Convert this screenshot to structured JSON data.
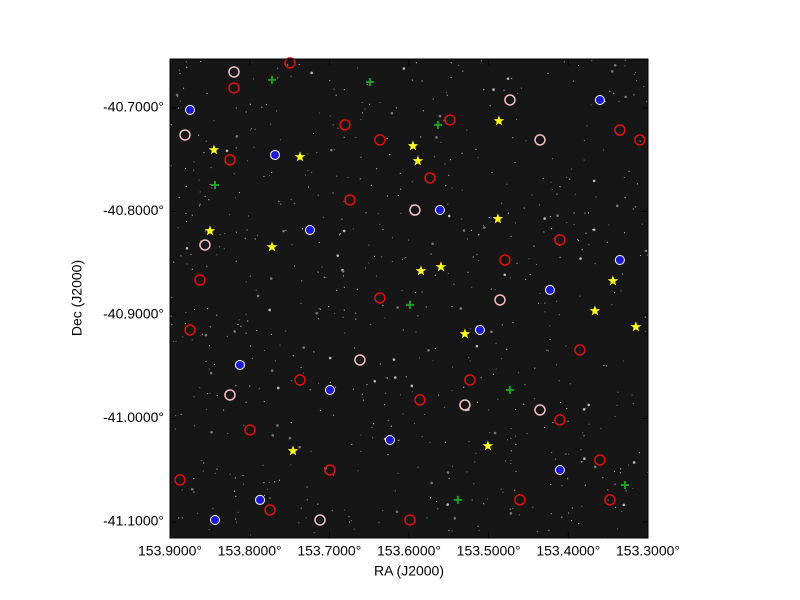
{
  "chart_data": {
    "type": "sky-overlay",
    "x_label": "RA (J2000)",
    "y_label": "Dec (J2000)",
    "xlim": [
      153.9,
      153.3
    ],
    "ylim": [
      -41.1155,
      -40.6527
    ],
    "xticks": [
      {
        "value": 153.9,
        "label": "153.9000°"
      },
      {
        "value": 153.8,
        "label": "153.8000°"
      },
      {
        "value": 153.7,
        "label": "153.7000°"
      },
      {
        "value": 153.6,
        "label": "153.6000°"
      },
      {
        "value": 153.5,
        "label": "153.5000°"
      },
      {
        "value": 153.4,
        "label": "153.4000°"
      },
      {
        "value": 153.3,
        "label": "153.3000°"
      }
    ],
    "yticks": [
      {
        "value": -40.7,
        "label": "-40.7000°"
      },
      {
        "value": -40.8,
        "label": "-40.8000°"
      },
      {
        "value": -40.9,
        "label": "-40.9000°"
      },
      {
        "value": -41.0,
        "label": "-41.0000°"
      },
      {
        "value": -41.1,
        "label": "-41.1000°"
      }
    ],
    "series": [
      {
        "color": "#e01010",
        "marker": "circle",
        "x": [
          153.8197,
          153.7494,
          153.6804,
          153.5737,
          153.6365,
          153.4106,
          153.3353,
          153.8749,
          153.7996,
          153.6992,
          153.5988,
          153.4608,
          153.3604,
          153.3102,
          153.5235,
          153.7368,
          153.8624,
          153.4106,
          153.7745,
          153.5863,
          153.6741,
          153.4796,
          153.3855,
          153.8247,
          153.5486,
          153.3478,
          153.6365,
          153.8875
        ],
        "y": [
          -40.6807,
          -40.6565,
          -40.7164,
          -40.7676,
          -40.8836,
          -40.8275,
          -40.7213,
          -40.9145,
          -41.0111,
          -41.0498,
          -41.0981,
          -41.0787,
          -41.0401,
          -40.7309,
          -40.9628,
          -40.9628,
          -40.8662,
          -41.0014,
          -41.0884,
          -40.9821,
          -40.7889,
          -40.8469,
          -40.9338,
          -40.7502,
          -40.7116,
          -41.0787,
          -40.7309,
          -41.0594
        ]
      },
      {
        "color": "#1a1ad0",
        "marker": "dot",
        "x": [
          153.8749,
          153.7682,
          153.7243,
          153.5612,
          153.3604,
          153.4231,
          153.8435,
          153.6239,
          153.511,
          153.3353,
          153.6992,
          153.787,
          153.4106,
          153.8122
        ],
        "y": [
          -40.7019,
          -40.7454,
          -40.8179,
          -40.7986,
          -40.6923,
          -40.8758,
          -41.0981,
          -41.0208,
          -40.9145,
          -40.8469,
          -40.9725,
          -41.0787,
          -41.0498,
          -40.9483
        ]
      },
      {
        "color": "#f4c0c8",
        "marker": "circle",
        "x": [
          153.8197,
          153.8812,
          153.8561,
          153.4858,
          153.5925,
          153.6616,
          153.5298,
          153.4356,
          153.7117,
          153.4356,
          153.8247,
          153.4733
        ],
        "y": [
          -40.6652,
          -40.7261,
          -40.8324,
          -40.8855,
          -40.7986,
          -40.9435,
          -40.987,
          -40.9918,
          -41.0981,
          -40.7309,
          -40.9773,
          -40.6923
        ]
      },
      {
        "color": "#20a020",
        "marker": "plus",
        "x": [
          153.772,
          153.649,
          153.5988,
          153.4733,
          153.329,
          153.5637,
          153.5386,
          153.8435
        ],
        "y": [
          -40.6729,
          -40.6749,
          -40.8903,
          -40.9725,
          -41.0643,
          -40.7164,
          -41.0787,
          -40.7744
        ]
      },
      {
        "color": "#ffff20",
        "marker": "star",
        "x": [
          153.8448,
          153.7368,
          153.595,
          153.5888,
          153.4871,
          153.4884,
          153.8498,
          153.772,
          153.5599,
          153.585,
          153.344,
          153.3666,
          153.5298,
          153.3152,
          153.7456,
          153.5009
        ],
        "y": [
          -40.7406,
          -40.7473,
          -40.7367,
          -40.7512,
          -40.7126,
          -40.8072,
          -40.8188,
          -40.8343,
          -40.8536,
          -40.8575,
          -40.8672,
          -40.8961,
          -40.9184,
          -40.9116,
          -41.0314,
          -41.0266
        ]
      }
    ]
  }
}
